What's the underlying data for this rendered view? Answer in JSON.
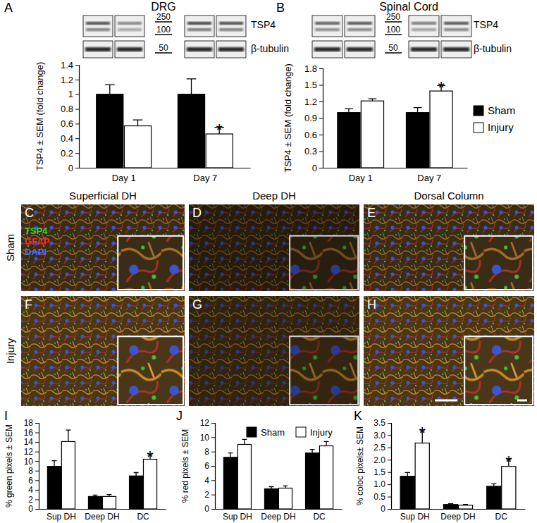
{
  "chart_data": [
    {
      "type": "bar",
      "title": "DRG",
      "annotations": [
        "A"
      ],
      "y_label": "TSP4 ± SEM (fold change)",
      "categories": [
        "Day 1",
        "Day 7"
      ],
      "series": [
        {
          "color": "#000000",
          "values": [
            1.0,
            1.0
          ],
          "errors": [
            0.13,
            0.21
          ],
          "significance": [
            null,
            null
          ]
        },
        {
          "color": "#ffffff",
          "values": [
            0.57,
            0.46
          ],
          "errors": [
            0.08,
            0.09
          ],
          "significance": [
            null,
            "*"
          ]
        }
      ],
      "ylim": [
        0,
        1.4
      ],
      "yticks": [
        0,
        0.2,
        0.4,
        0.6,
        0.8,
        1,
        1.2,
        1.4
      ]
    },
    {
      "type": "bar",
      "title": "Spinal Cord",
      "annotations": [
        "B"
      ],
      "y_label": "TSP4 ± SEM (fold change)",
      "categories": [
        "Day 1",
        "Day 7"
      ],
      "series": [
        {
          "name": "Sham",
          "color": "#000000",
          "values": [
            1.0,
            1.0
          ],
          "errors": [
            0.07,
            0.09
          ],
          "significance": [
            null,
            null
          ]
        },
        {
          "name": "Injury",
          "color": "#ffffff",
          "values": [
            1.21,
            1.39
          ],
          "errors": [
            0.04,
            0.1
          ],
          "significance": [
            null,
            "*"
          ]
        }
      ],
      "ylim": [
        0,
        1.8
      ],
      "yticks": [
        0,
        0.3,
        0.6,
        0.9,
        1.2,
        1.5,
        1.8
      ],
      "legend": "right"
    },
    {
      "type": "bar",
      "annotations": [
        "I"
      ],
      "y_label": "% green pixels ± SEM",
      "categories": [
        "Sup DH",
        "Deep DH",
        "DC"
      ],
      "series": [
        {
          "color": "#000000",
          "values": [
            8.9,
            2.6,
            6.9
          ],
          "errors": [
            1.2,
            0.3,
            0.7
          ],
          "significance": [
            null,
            null,
            null
          ]
        },
        {
          "color": "#ffffff",
          "values": [
            14.1,
            2.6,
            10.4
          ],
          "errors": [
            2.4,
            0.4,
            0.9
          ],
          "significance": [
            null,
            null,
            "*"
          ]
        }
      ],
      "ylim": [
        0,
        18
      ],
      "yticks": [
        0,
        2,
        4,
        6,
        8,
        10,
        12,
        14,
        16,
        18
      ]
    },
    {
      "type": "bar",
      "annotations": [
        "J"
      ],
      "y_label": "% red pixels ± SEM",
      "categories": [
        "Sup DH",
        "Deep DH",
        "DC"
      ],
      "series": [
        {
          "name": "Sham",
          "color": "#000000",
          "values": [
            7.2,
            2.8,
            7.8
          ],
          "errors": [
            0.6,
            0.3,
            0.5
          ],
          "significance": [
            null,
            null,
            null
          ]
        },
        {
          "name": "Injury",
          "color": "#ffffff",
          "values": [
            9.0,
            2.9,
            8.8
          ],
          "errors": [
            0.7,
            0.3,
            0.6
          ],
          "significance": [
            null,
            null,
            null
          ]
        }
      ],
      "ylim": [
        0,
        12
      ],
      "yticks": [
        0,
        2,
        4,
        6,
        8,
        10,
        12
      ],
      "legend": "top"
    },
    {
      "type": "bar",
      "annotations": [
        "K"
      ],
      "y_label": "% coloc pixels± SEM",
      "categories": [
        "Sup DH",
        "Deep DH",
        "DC"
      ],
      "series": [
        {
          "color": "#000000",
          "values": [
            1.33,
            0.18,
            0.92
          ],
          "errors": [
            0.15,
            0.03,
            0.1
          ],
          "significance": [
            null,
            null,
            null
          ]
        },
        {
          "color": "#ffffff",
          "values": [
            2.68,
            0.15,
            1.73
          ],
          "errors": [
            0.5,
            0.03,
            0.27
          ],
          "significance": [
            "*",
            null,
            "*"
          ]
        }
      ],
      "ylim": [
        0,
        3.5
      ],
      "yticks": [
        0,
        0.5,
        {
          "value": 1,
          "label": "1.0"
        },
        1.5,
        {
          "value": 2,
          "label": "2.0"
        },
        2.5,
        {
          "value": 3,
          "label": "3.0"
        },
        3.5
      ]
    }
  ],
  "figure": {
    "blots": [
      {
        "markers": [
          250,
          100,
          50
        ],
        "labels": [
          "TSP4",
          "β-tubulin"
        ]
      },
      {
        "markers": [
          250,
          100,
          50
        ],
        "labels": [
          "TSP4",
          "β-tubulin"
        ]
      }
    ],
    "micrographs": {
      "columns": [
        "Superficial DH",
        "Deep DH",
        "Dorsal Column"
      ],
      "rows": [
        "Sham",
        "Injury"
      ],
      "panels": [
        "C",
        "D",
        "E",
        "F",
        "G",
        "H"
      ],
      "stains": [
        {
          "text": "TSP4",
          "color": "#33d633"
        },
        {
          "text": "GFAP",
          "color": "#ff2a2a"
        },
        {
          "text": "DAPI",
          "color": "#4a6cff"
        }
      ]
    }
  }
}
